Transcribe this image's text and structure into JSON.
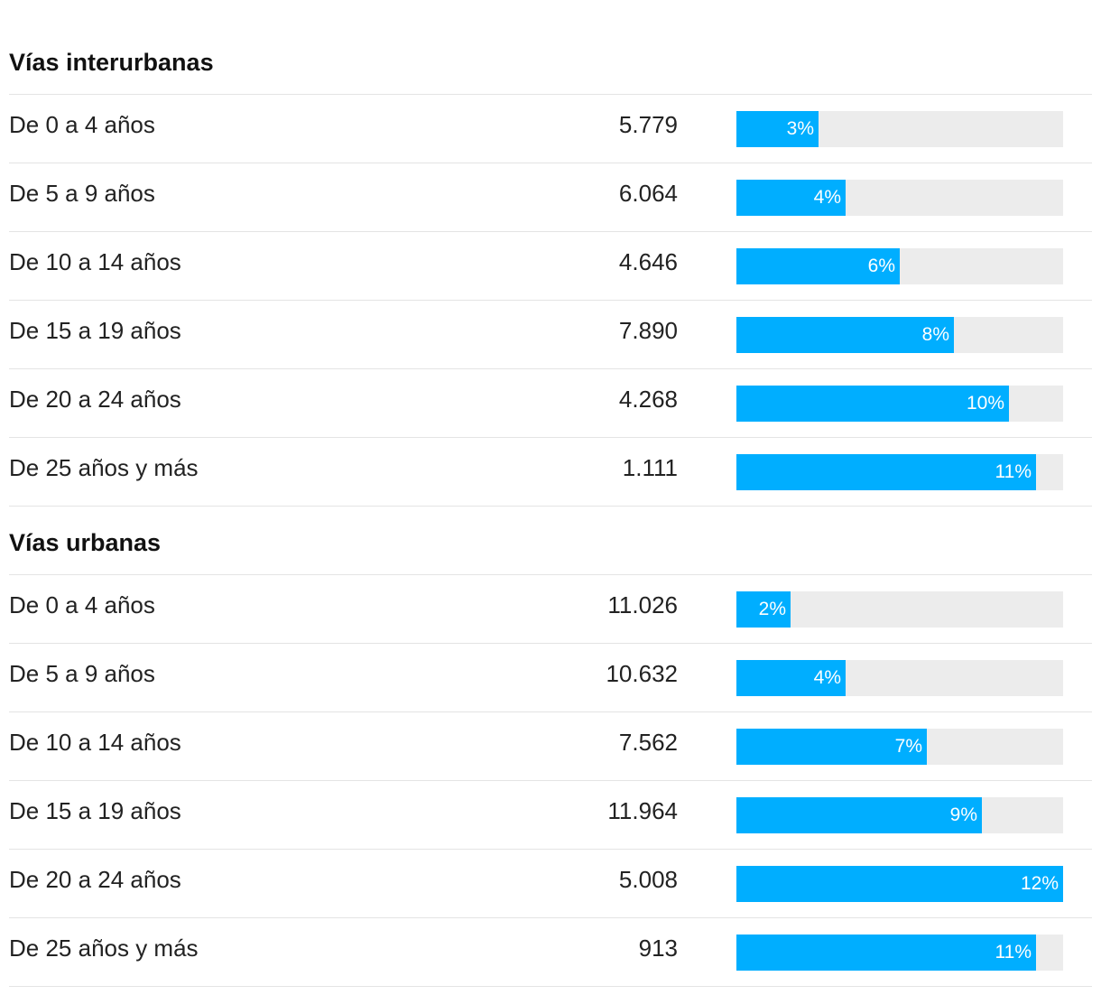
{
  "chart_data": {
    "type": "bar",
    "groups": [
      {
        "title": "Vías interurbanas",
        "rows": [
          {
            "category": "De 0 a 4 años",
            "value": "5.779",
            "percent": 3,
            "percent_label": "3%"
          },
          {
            "category": "De 5 a 9 años",
            "value": "6.064",
            "percent": 4,
            "percent_label": "4%"
          },
          {
            "category": "De 10 a 14 años",
            "value": "4.646",
            "percent": 6,
            "percent_label": "6%"
          },
          {
            "category": "De 15 a 19 años",
            "value": "7.890",
            "percent": 8,
            "percent_label": "8%"
          },
          {
            "category": "De 20 a 24 años",
            "value": "4.268",
            "percent": 10,
            "percent_label": "10%"
          },
          {
            "category": "De 25 años y más",
            "value": "1.111",
            "percent": 11,
            "percent_label": "11%"
          }
        ]
      },
      {
        "title": "Vías urbanas",
        "rows": [
          {
            "category": "De 0 a 4 años",
            "value": "11.026",
            "percent": 2,
            "percent_label": "2%"
          },
          {
            "category": "De 5 a 9 años",
            "value": "10.632",
            "percent": 4,
            "percent_label": "4%"
          },
          {
            "category": "De 10 a 14 años",
            "value": "7.562",
            "percent": 7,
            "percent_label": "7%"
          },
          {
            "category": "De 15 a 19 años",
            "value": "11.964",
            "percent": 9,
            "percent_label": "9%"
          },
          {
            "category": "De 20 a 24 años",
            "value": "5.008",
            "percent": 12,
            "percent_label": "12%"
          },
          {
            "category": "De 25 años y más",
            "value": "913",
            "percent": 11,
            "percent_label": "11%"
          }
        ]
      }
    ],
    "bar_max_percent": 12,
    "colors": {
      "bar": "#00aeff",
      "track": "#ececec",
      "text": "#222222"
    }
  }
}
